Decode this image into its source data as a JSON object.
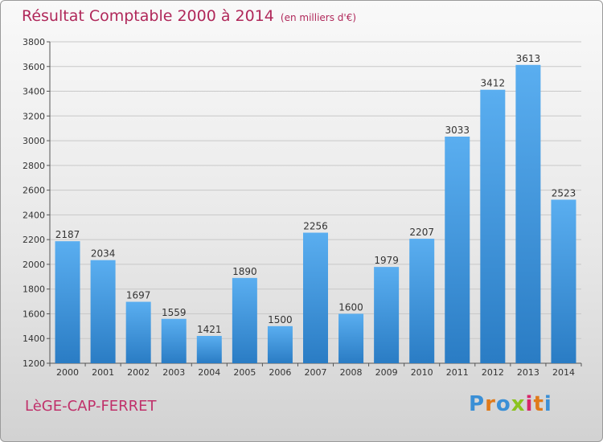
{
  "chart_data": {
    "type": "bar",
    "title": "Résultat Comptable 2000 à 2014",
    "subtitle": "(en milliers d'€)",
    "categories": [
      "2000",
      "2001",
      "2002",
      "2003",
      "2004",
      "2005",
      "2006",
      "2007",
      "2008",
      "2009",
      "2010",
      "2011",
      "2012",
      "2013",
      "2014"
    ],
    "values": [
      2187,
      2034,
      1697,
      1559,
      1421,
      1890,
      1500,
      2256,
      1600,
      1979,
      2207,
      3033,
      3412,
      3613,
      2523
    ],
    "ylim": [
      1200,
      3800
    ],
    "yticks": [
      1200,
      1400,
      1600,
      1800,
      2000,
      2200,
      2400,
      2600,
      2800,
      3000,
      3200,
      3400,
      3600,
      3800
    ],
    "grid": true,
    "bar_color": "#3a8fd6"
  },
  "footer": {
    "place": "LèGE-CAP-FERRET"
  },
  "logo": {
    "text": "Proxiti",
    "letter_colors": [
      "#3a8fd6",
      "#e07a1a",
      "#3a8fd6",
      "#8bc31e",
      "#d8266a",
      "#e07a1a",
      "#3a8fd6"
    ]
  }
}
